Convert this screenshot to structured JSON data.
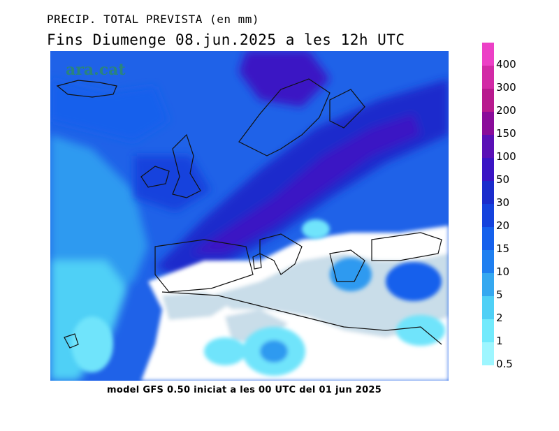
{
  "header": {
    "line1": "PRECIP. TOTAL PREVISTA (en mm)",
    "line2": "Fins Diumenge 08.jun.2025 a les 12h UTC"
  },
  "footer": {
    "text": "model GFS 0.50 iniciat a les 00 UTC del 01 jun 2025"
  },
  "watermark": "ara.cat",
  "legend": {
    "levels": [
      {
        "label": "0.5",
        "color": "#9ef6ff"
      },
      {
        "label": "1",
        "color": "#72eafc"
      },
      {
        "label": "2",
        "color": "#4fd0f6"
      },
      {
        "label": "5",
        "color": "#35a8f0"
      },
      {
        "label": "10",
        "color": "#1f7ff0"
      },
      {
        "label": "15",
        "color": "#1560ec"
      },
      {
        "label": "20",
        "color": "#1442dd"
      },
      {
        "label": "30",
        "color": "#1a2ccc"
      },
      {
        "label": "50",
        "color": "#3a14c4"
      },
      {
        "label": "100",
        "color": "#5a10b6"
      },
      {
        "label": "150",
        "color": "#8a0c9a"
      },
      {
        "label": "200",
        "color": "#b81a8e"
      },
      {
        "label": "300",
        "color": "#d22aa6"
      },
      {
        "label": "400",
        "color": "#ec40c6"
      }
    ],
    "top_color": "#f254d0"
  },
  "map_colors": {
    "dry_land": "#c9dde9",
    "light": "#6fe4fb",
    "mid": "#2f9af0",
    "heavy": "#1a3fd8",
    "very_heavy": "#3a1cc0",
    "no_rain": "#ffffff"
  }
}
